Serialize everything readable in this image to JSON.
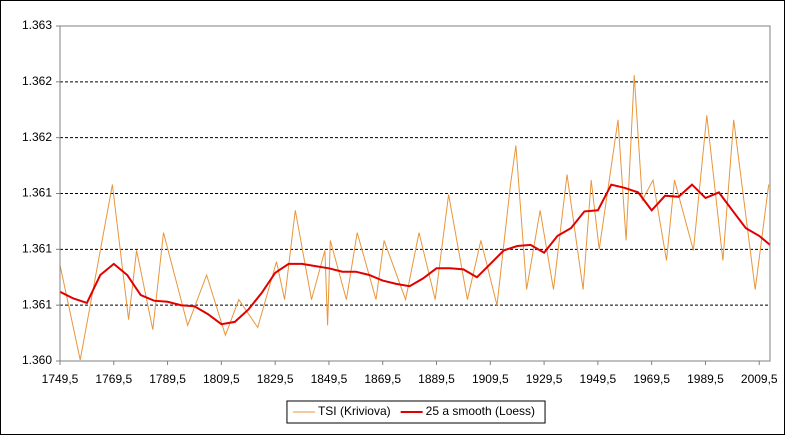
{
  "chart_data": {
    "type": "line",
    "xlim": [
      1749.5,
      2013.5
    ],
    "xticks": [
      {
        "value": 1749.5,
        "label": "1749,5"
      },
      {
        "value": 1769.5,
        "label": "1769,5"
      },
      {
        "value": 1789.5,
        "label": "1789,5"
      },
      {
        "value": 1809.5,
        "label": "1809,5"
      },
      {
        "value": 1829.5,
        "label": "1829,5"
      },
      {
        "value": 1849.5,
        "label": "1849,5"
      },
      {
        "value": 1869.5,
        "label": "1869,5"
      },
      {
        "value": 1889.5,
        "label": "1889,5"
      },
      {
        "value": 1909.5,
        "label": "1909,5"
      },
      {
        "value": 1929.5,
        "label": "1929,5"
      },
      {
        "value": 1949.5,
        "label": "1949,5"
      },
      {
        "value": 1969.5,
        "label": "1969,5"
      },
      {
        "value": 1989.5,
        "label": "1989,5"
      },
      {
        "value": 2009.5,
        "label": "2009,5"
      }
    ],
    "ylim": [
      1360,
      1363
    ],
    "yticks": [
      {
        "value": 1360,
        "label": "1.360"
      },
      {
        "value": 1360.5,
        "label": "1.361"
      },
      {
        "value": 1361,
        "label": "1.361"
      },
      {
        "value": 1361.5,
        "label": "1.361"
      },
      {
        "value": 1362,
        "label": "1.362"
      },
      {
        "value": 1362.5,
        "label": "1.362"
      },
      {
        "value": 1363,
        "label": "1.363"
      }
    ],
    "grid": true,
    "legend": "bottom",
    "series": [
      {
        "name": "TSI (Kriviova)",
        "color": "#e8963c",
        "width": 1,
        "x": [
          1749.5,
          1757,
          1769,
          1775,
          1778,
          1784,
          1788,
          1797,
          1804,
          1811,
          1816,
          1823,
          1830,
          1833,
          1837,
          1843,
          1848,
          1849,
          1850,
          1856,
          1860,
          1867,
          1870,
          1878,
          1883,
          1889,
          1894,
          1901,
          1906,
          1912,
          1917,
          1919,
          1923,
          1928,
          1933,
          1938,
          1944,
          1947,
          1950,
          1957,
          1960,
          1963,
          1966,
          1970,
          1975,
          1978,
          1985,
          1990,
          1996,
          2000,
          2008,
          2013
        ],
        "values": [
          1360.86,
          1360.01,
          1361.58,
          1360.37,
          1360.99,
          1360.28,
          1361.15,
          1360.32,
          1360.77,
          1360.23,
          1360.55,
          1360.3,
          1360.89,
          1360.55,
          1361.35,
          1360.55,
          1360.99,
          1360.32,
          1361.08,
          1360.55,
          1361.15,
          1360.55,
          1361.08,
          1360.55,
          1361.15,
          1360.55,
          1361.49,
          1360.55,
          1361.08,
          1360.5,
          1361.58,
          1361.93,
          1360.64,
          1361.35,
          1360.64,
          1361.67,
          1360.64,
          1361.62,
          1361.0,
          1362.16,
          1361.08,
          1362.56,
          1361.44,
          1361.62,
          1360.9,
          1361.62,
          1360.99,
          1362.2,
          1360.9,
          1362.16,
          1360.64,
          1361.58
        ]
      },
      {
        "name": "25 a smooth (Loess)",
        "color": "#e00000",
        "width": 2,
        "x": [
          1749.5,
          1754.5,
          1759.5,
          1764.5,
          1769.5,
          1774.5,
          1779.5,
          1784.5,
          1789.5,
          1794.5,
          1799.5,
          1804.5,
          1809.5,
          1814.5,
          1819.5,
          1824.5,
          1829.5,
          1834.5,
          1839.5,
          1844.5,
          1849.5,
          1854.5,
          1859.5,
          1864.5,
          1869.5,
          1874.5,
          1879.5,
          1884.5,
          1889.5,
          1894.5,
          1899.5,
          1904.5,
          1909.5,
          1914.5,
          1919.5,
          1924.5,
          1929.5,
          1934.5,
          1939.5,
          1944.5,
          1949.5,
          1954.5,
          1959.5,
          1964.5,
          1969.5,
          1974.5,
          1979.5,
          1984.5,
          1989.5,
          1994.5,
          1999.5,
          2004.5,
          2009.5,
          2013.5
        ],
        "values": [
          1360.62,
          1360.56,
          1360.52,
          1360.77,
          1360.87,
          1360.77,
          1360.59,
          1360.54,
          1360.53,
          1360.5,
          1360.49,
          1360.42,
          1360.33,
          1360.35,
          1360.46,
          1360.61,
          1360.79,
          1360.87,
          1360.87,
          1360.85,
          1360.83,
          1360.8,
          1360.8,
          1360.77,
          1360.72,
          1360.69,
          1360.67,
          1360.74,
          1360.83,
          1360.83,
          1360.82,
          1360.75,
          1360.87,
          1360.99,
          1361.03,
          1361.04,
          1360.97,
          1361.12,
          1361.19,
          1361.34,
          1361.35,
          1361.58,
          1361.55,
          1361.51,
          1361.35,
          1361.48,
          1361.47,
          1361.58,
          1361.46,
          1361.51,
          1361.35,
          1361.19,
          1361.12,
          1361.04
        ]
      }
    ]
  }
}
